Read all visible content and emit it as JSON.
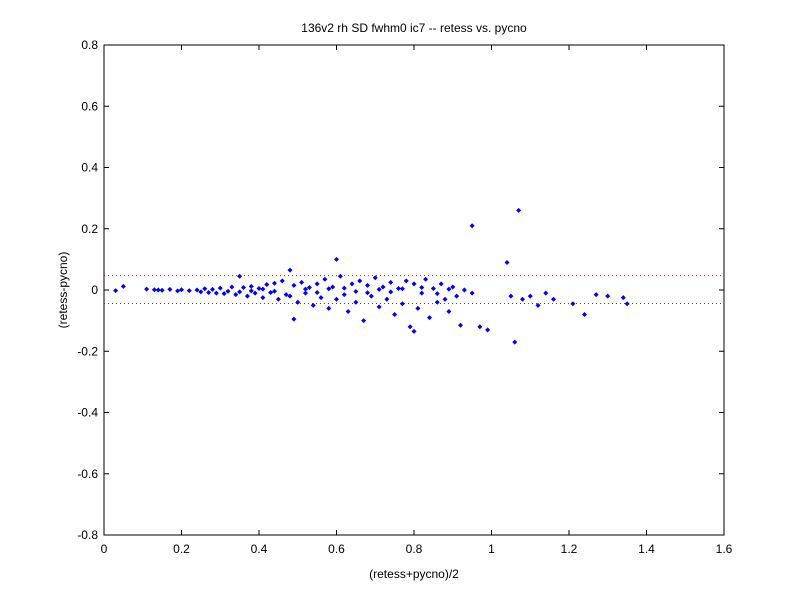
{
  "chart_data": {
    "type": "scatter",
    "title": "136v2 rh SD fwhm0 ic7 -- retess vs. pycno",
    "x_label": "(retess+pycno)/2",
    "y_label": "(retess-pycno)",
    "xlim": [
      0,
      1.6
    ],
    "ylim": [
      -0.8,
      0.8
    ],
    "xticks": [
      0,
      0.2,
      0.4,
      0.6,
      0.8,
      1,
      1.2,
      1.4,
      1.6
    ],
    "yticks": [
      -0.8,
      -0.6,
      -0.4,
      -0.2,
      0,
      0.2,
      0.4,
      0.6,
      0.8
    ],
    "color": "#0000ff",
    "ref_lines": [
      0.047,
      -0.044
    ],
    "ref_line_color": "#ff0000",
    "x": [
      0.03,
      0.05,
      0.11,
      0.13,
      0.14,
      0.15,
      0.17,
      0.19,
      0.2,
      0.22,
      0.24,
      0.25,
      0.26,
      0.27,
      0.28,
      0.29,
      0.3,
      0.31,
      0.32,
      0.33,
      0.34,
      0.35,
      0.35,
      0.36,
      0.37,
      0.38,
      0.39,
      0.4,
      0.41,
      0.42,
      0.43,
      0.44,
      0.45,
      0.46,
      0.47,
      0.48,
      0.48,
      0.49,
      0.49,
      0.5,
      0.51,
      0.52,
      0.53,
      0.54,
      0.55,
      0.56,
      0.57,
      0.58,
      0.59,
      0.6,
      0.6,
      0.61,
      0.62,
      0.63,
      0.64,
      0.65,
      0.66,
      0.67,
      0.68,
      0.69,
      0.7,
      0.71,
      0.72,
      0.73,
      0.74,
      0.75,
      0.76,
      0.77,
      0.78,
      0.79,
      0.8,
      0.8,
      0.81,
      0.82,
      0.83,
      0.84,
      0.85,
      0.86,
      0.87,
      0.88,
      0.89,
      0.9,
      0.91,
      0.92,
      0.93,
      0.95,
      0.95,
      0.97,
      0.99,
      1.04,
      1.07,
      1.06,
      1.05,
      1.08,
      1.1,
      1.12,
      1.14,
      1.16,
      1.21,
      1.24,
      1.27,
      1.3,
      1.34,
      1.35,
      0.52,
      0.55,
      0.58,
      0.62,
      0.65,
      0.68,
      0.71,
      0.74,
      0.77,
      0.82,
      0.86,
      0.89,
      0.44,
      0.41,
      0.38
    ],
    "y": [
      -0.002,
      0.012,
      0.003,
      0.001,
      0,
      -0.001,
      0.002,
      -0.003,
      0.001,
      -0.002,
      0,
      -0.006,
      0.004,
      -0.008,
      0.002,
      -0.01,
      0.006,
      -0.012,
      -0.004,
      0.01,
      -0.015,
      0.045,
      -0.006,
      0.008,
      -0.02,
      0.012,
      -0.01,
      0.005,
      -0.025,
      0.018,
      -0.008,
      0.022,
      -0.03,
      0.03,
      -0.015,
      0.065,
      -0.02,
      -0.095,
      0.015,
      -0.04,
      0.025,
      -0.01,
      0.008,
      -0.05,
      0.02,
      -0.025,
      0.035,
      -0.06,
      0.01,
      0.1,
      -0.03,
      0.045,
      -0.015,
      -0.07,
      0.02,
      -0.04,
      0.03,
      -0.1,
      0.015,
      -0.02,
      0.04,
      -0.055,
      0.01,
      -0.03,
      0.025,
      -0.08,
      0.005,
      -0.045,
      0.03,
      -0.12,
      -0.135,
      0.02,
      -0.06,
      -0.01,
      0.035,
      -0.09,
      0.005,
      -0.04,
      0.02,
      -0.03,
      -0.07,
      0.01,
      -0.02,
      -0.115,
      0,
      0.21,
      -0.01,
      -0.12,
      -0.13,
      0.09,
      0.26,
      -0.17,
      -0.02,
      -0.03,
      -0.02,
      -0.05,
      -0.01,
      -0.03,
      -0.045,
      -0.08,
      -0.015,
      -0.02,
      -0.025,
      -0.045,
      0.003,
      -0.008,
      0.004,
      0.006,
      -0.005,
      -0.009,
      0.002,
      -0.006,
      0.004,
      0.008,
      -0.012,
      0.003,
      -0.004,
      0.003,
      -0.003
    ]
  }
}
